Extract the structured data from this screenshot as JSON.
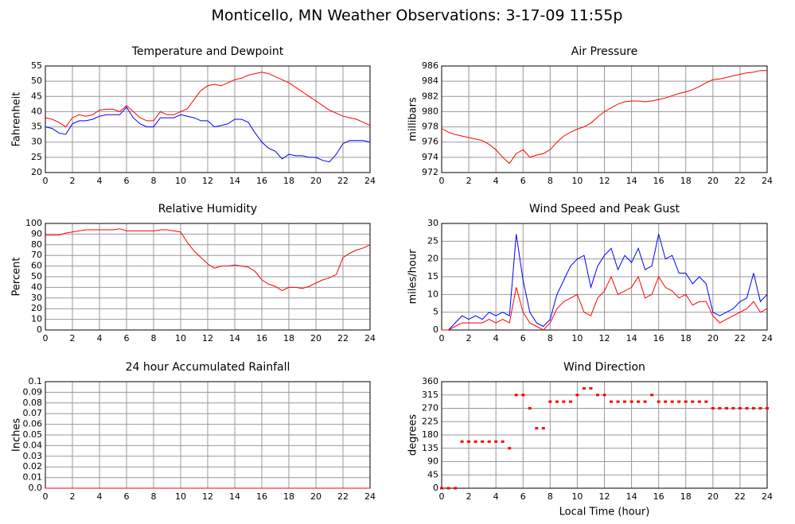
{
  "title": "Monticello, MN Weather Observations: 3-17-09 11:55p",
  "chart_data": [
    {
      "type": "line",
      "title": "Temperature and Dewpoint",
      "ylabel": "Fahrenheit",
      "grid": true,
      "xlim": [
        0,
        24
      ],
      "xticks": [
        0,
        2,
        4,
        6,
        8,
        10,
        12,
        14,
        16,
        18,
        20,
        22,
        24
      ],
      "ylim": [
        20,
        55
      ],
      "yticks": [
        20,
        25,
        30,
        35,
        40,
        45,
        50,
        55
      ],
      "x": [
        0,
        0.5,
        1,
        1.5,
        2,
        2.5,
        3,
        3.5,
        4,
        4.5,
        5,
        5.5,
        6,
        6.5,
        7,
        7.5,
        8,
        8.5,
        9,
        9.5,
        10,
        10.5,
        11,
        11.5,
        12,
        12.5,
        13,
        13.5,
        14,
        14.5,
        15,
        15.5,
        16,
        16.5,
        17,
        17.5,
        18,
        18.5,
        19,
        19.5,
        20,
        20.5,
        21,
        21.5,
        22,
        22.5,
        23,
        23.5,
        24
      ],
      "series": [
        {
          "color": "#ff0000",
          "values": [
            38,
            37.5,
            36.5,
            35,
            38,
            39,
            38.5,
            39,
            40.5,
            40.8,
            40.8,
            40,
            42,
            40,
            38,
            37,
            37,
            40,
            39,
            39,
            40,
            41,
            44,
            47,
            48.5,
            49,
            48.5,
            49.5,
            50.5,
            51,
            52,
            52.5,
            53,
            52.5,
            51.5,
            50.5,
            49.5,
            48,
            46.5,
            45,
            43.5,
            42,
            40.5,
            39.5,
            38.5,
            38,
            37.5,
            36.5,
            35.5
          ]
        },
        {
          "color": "#0000ff",
          "values": [
            35,
            34.5,
            33,
            32.5,
            36,
            37,
            37,
            37.5,
            38.5,
            39,
            39,
            39,
            41.5,
            38,
            36,
            35,
            35,
            38,
            38,
            38,
            39,
            38.5,
            38,
            37,
            37,
            35,
            35.5,
            36,
            37.5,
            37.5,
            36.5,
            33,
            30,
            28,
            27,
            24.5,
            26,
            25.5,
            25.5,
            25,
            25,
            24,
            23.5,
            26,
            29.5,
            30.5,
            30.5,
            30.5,
            30
          ]
        }
      ]
    },
    {
      "type": "line",
      "title": "Air Pressure",
      "ylabel": "millibars",
      "grid": true,
      "xlim": [
        0,
        24
      ],
      "xticks": [
        0,
        2,
        4,
        6,
        8,
        10,
        12,
        14,
        16,
        18,
        20,
        22,
        24
      ],
      "ylim": [
        972,
        986
      ],
      "yticks": [
        972,
        974,
        976,
        978,
        980,
        982,
        984,
        986
      ],
      "x": [
        0,
        0.5,
        1,
        1.5,
        2,
        2.5,
        3,
        3.5,
        4,
        4.5,
        5,
        5.5,
        6,
        6.5,
        7,
        7.5,
        8,
        8.5,
        9,
        9.5,
        10,
        10.5,
        11,
        11.5,
        12,
        12.5,
        13,
        13.5,
        14,
        14.5,
        15,
        15.5,
        16,
        16.5,
        17,
        17.5,
        18,
        18.5,
        19,
        19.5,
        20,
        20.5,
        21,
        21.5,
        22,
        22.5,
        23,
        23.5,
        24
      ],
      "series": [
        {
          "color": "#ff0000",
          "values": [
            977.8,
            977.3,
            977,
            976.8,
            976.6,
            976.4,
            976.2,
            975.7,
            975,
            974,
            973.2,
            974.5,
            975,
            974,
            974.3,
            974.5,
            975,
            976,
            976.8,
            977.3,
            977.7,
            978,
            978.5,
            979.3,
            980,
            980.5,
            981,
            981.3,
            981.4,
            981.4,
            981.3,
            981.4,
            981.6,
            981.8,
            982.1,
            982.4,
            982.6,
            982.9,
            983.3,
            983.8,
            984.2,
            984.3,
            984.5,
            984.7,
            984.9,
            985.1,
            985.2,
            985.4,
            985.4
          ]
        }
      ]
    },
    {
      "type": "line",
      "title": "Relative Humidity",
      "ylabel": "Percent",
      "grid": true,
      "xlim": [
        0,
        24
      ],
      "xticks": [
        0,
        2,
        4,
        6,
        8,
        10,
        12,
        14,
        16,
        18,
        20,
        22,
        24
      ],
      "ylim": [
        0,
        100
      ],
      "yticks": [
        0,
        10,
        20,
        30,
        40,
        50,
        60,
        70,
        80,
        90,
        100
      ],
      "x": [
        0,
        0.5,
        1,
        1.5,
        2,
        2.5,
        3,
        3.5,
        4,
        4.5,
        5,
        5.5,
        6,
        6.5,
        7,
        7.5,
        8,
        8.5,
        9,
        9.5,
        10,
        10.5,
        11,
        11.5,
        12,
        12.5,
        13,
        13.5,
        14,
        14.5,
        15,
        15.5,
        16,
        16.5,
        17,
        17.5,
        18,
        18.5,
        19,
        19.5,
        20,
        20.5,
        21,
        21.5,
        22,
        22.5,
        23,
        23.5,
        24
      ],
      "series": [
        {
          "color": "#ff0000",
          "values": [
            89,
            89,
            89,
            91,
            92,
            93,
            94,
            94,
            94,
            94,
            94,
            95,
            93,
            93,
            93,
            93,
            93,
            94,
            94,
            93,
            92,
            82,
            74,
            68,
            62,
            58,
            60,
            60,
            61,
            60,
            59,
            55,
            47,
            43,
            41,
            37,
            40,
            40,
            39,
            41,
            44,
            47,
            49,
            52,
            68,
            72,
            75,
            77,
            80
          ]
        }
      ]
    },
    {
      "type": "line",
      "title": "Wind Speed and Peak Gust",
      "ylabel": "miles/hour",
      "grid": true,
      "xlim": [
        0,
        24
      ],
      "xticks": [
        0,
        2,
        4,
        6,
        8,
        10,
        12,
        14,
        16,
        18,
        20,
        22,
        24
      ],
      "ylim": [
        0,
        30
      ],
      "yticks": [
        0,
        5,
        10,
        15,
        20,
        25,
        30
      ],
      "x": [
        0,
        0.5,
        1,
        1.5,
        2,
        2.5,
        3,
        3.5,
        4,
        4.5,
        5,
        5.5,
        6,
        6.5,
        7,
        7.5,
        8,
        8.5,
        9,
        9.5,
        10,
        10.5,
        11,
        11.5,
        12,
        12.5,
        13,
        13.5,
        14,
        14.5,
        15,
        15.5,
        16,
        16.5,
        17,
        17.5,
        18,
        18.5,
        19,
        19.5,
        20,
        20.5,
        21,
        21.5,
        22,
        22.5,
        23,
        23.5,
        24
      ],
      "series": [
        {
          "color": "#0000ff",
          "values": [
            0,
            0,
            2,
            4,
            3,
            4,
            3,
            5,
            4,
            5,
            4,
            27,
            14,
            5,
            2,
            1,
            3,
            10,
            14,
            18,
            20,
            21,
            12,
            18,
            21,
            23,
            17,
            21,
            19,
            23,
            17,
            18,
            27,
            20,
            21,
            16,
            16,
            13,
            15,
            13,
            5,
            4,
            5,
            6,
            8,
            9,
            16,
            8,
            10
          ]
        },
        {
          "color": "#ff0000",
          "values": [
            0,
            0,
            1,
            2,
            2,
            2,
            2,
            3,
            2,
            3,
            2,
            12,
            5,
            2,
            1,
            0,
            2,
            6,
            8,
            9,
            10,
            5,
            4,
            9,
            11,
            15,
            10,
            11,
            12,
            15,
            9,
            10,
            15,
            12,
            11,
            9,
            10,
            7,
            8,
            8,
            4,
            2,
            3,
            4,
            5,
            6,
            8,
            5,
            6
          ]
        }
      ]
    },
    {
      "type": "line",
      "title": "24 hour Accumulated Rainfall",
      "ylabel": "Inches",
      "grid": true,
      "xlim": [
        0,
        24
      ],
      "xticks": [
        0,
        2,
        4,
        6,
        8,
        10,
        12,
        14,
        16,
        18,
        20,
        22,
        24
      ],
      "ylim": [
        0,
        0.1
      ],
      "yticks": [
        {
          "value": 0,
          "label": "0.0"
        },
        0.01,
        0.02,
        0.03,
        0.04,
        0.05,
        0.06,
        0.07,
        0.08,
        0.09,
        0.1
      ],
      "x": [
        0,
        24
      ],
      "series": [
        {
          "color": "#ff0000",
          "values": [
            0,
            0
          ]
        }
      ]
    },
    {
      "type": "scatter",
      "title": "Wind Direction",
      "ylabel": "degrees",
      "xlabel": "Local Time (hour)",
      "grid": true,
      "xlim": [
        0,
        24
      ],
      "xticks": [
        0,
        2,
        4,
        6,
        8,
        10,
        12,
        14,
        16,
        18,
        20,
        22,
        24
      ],
      "ylim": [
        0,
        360
      ],
      "yticks": [
        0,
        45,
        90,
        135,
        180,
        225,
        270,
        315,
        360
      ],
      "x": [
        0,
        0.5,
        1,
        1.5,
        2,
        2.5,
        3,
        3.5,
        4,
        4.5,
        5,
        5.5,
        6,
        6.5,
        7,
        7.5,
        8,
        8.5,
        9,
        9.5,
        10,
        10.5,
        11,
        11.5,
        12,
        12.5,
        13,
        13.5,
        14,
        14.5,
        15,
        15.5,
        16,
        16.5,
        17,
        17.5,
        18,
        18.5,
        19,
        19.5,
        20,
        20.5,
        21,
        21.5,
        22,
        22.5,
        23,
        23.5,
        24
      ],
      "series": [
        {
          "color": "#ff0000",
          "values": [
            0,
            0,
            0,
            157.5,
            157.5,
            157.5,
            157.5,
            157.5,
            157.5,
            157.5,
            135,
            315,
            315,
            270,
            202.5,
            202.5,
            292.5,
            292.5,
            292.5,
            292.5,
            315,
            337.5,
            337.5,
            315,
            315,
            292.5,
            292.5,
            292.5,
            292.5,
            292.5,
            292.5,
            315,
            292.5,
            292.5,
            292.5,
            292.5,
            292.5,
            292.5,
            292.5,
            292.5,
            270,
            270,
            270,
            270,
            270,
            270,
            270,
            270,
            270
          ]
        }
      ]
    }
  ]
}
